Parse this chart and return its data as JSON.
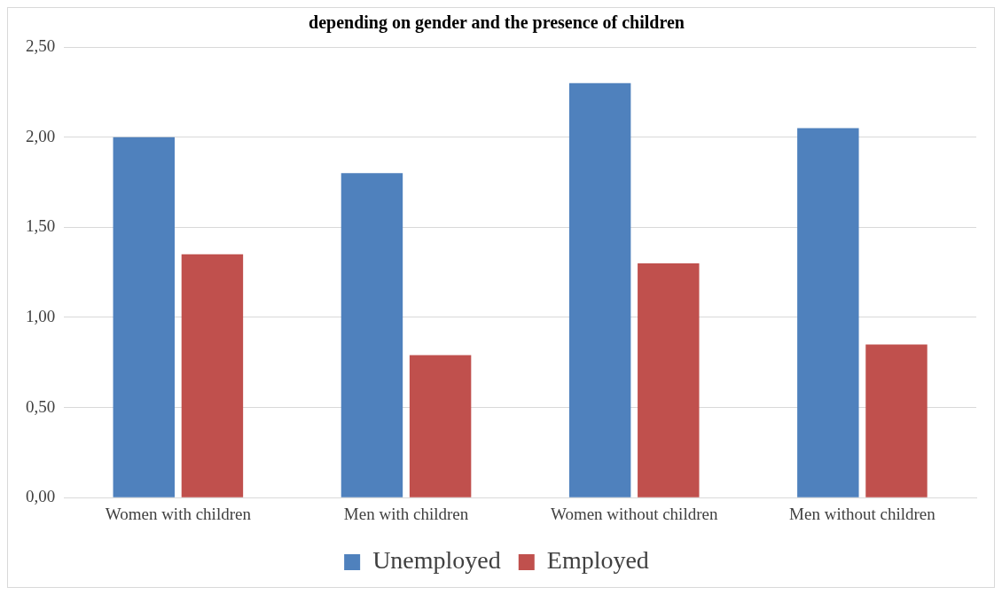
{
  "chart_data": {
    "type": "bar",
    "title": "depending on gender and the presence of children",
    "categories": [
      "Women with children",
      "Men with children",
      "Women without children",
      "Men without children"
    ],
    "series": [
      {
        "name": "Unemployed",
        "color": "#4f81bd",
        "values": [
          2.0,
          1.8,
          2.3,
          2.05
        ]
      },
      {
        "name": "Employed",
        "color": "#c0504d",
        "values": [
          1.35,
          0.79,
          1.3,
          0.85
        ]
      }
    ],
    "ylim": [
      0,
      2.5
    ],
    "yticks": [
      {
        "value": 0,
        "label": "0,00"
      },
      {
        "value": 0.5,
        "label": "0,50"
      },
      {
        "value": 1,
        "label": "1,00"
      },
      {
        "value": 1.5,
        "label": "1,50"
      },
      {
        "value": 2,
        "label": "2,00"
      },
      {
        "value": 2.5,
        "label": "2,50"
      }
    ],
    "grid": "y",
    "legend": "bottom"
  }
}
